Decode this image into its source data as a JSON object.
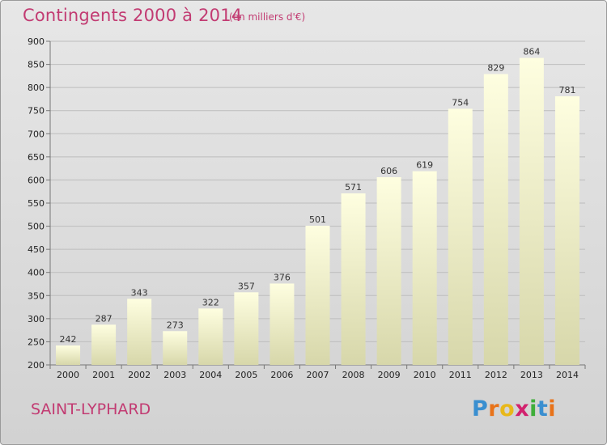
{
  "header": {
    "title": "Contingents 2000 à 2014",
    "subtitle": "(en milliers d'€)"
  },
  "footer": {
    "commune": "SAINT-LYPHARD",
    "logo_letters": [
      "P",
      "r",
      "o",
      "x",
      "i",
      "t",
      "i"
    ],
    "logo_colors": [
      "#3a8fd0",
      "#e8731a",
      "#e8b81a",
      "#d2226e",
      "#3fae3a",
      "#3a8fd0",
      "#e8731a"
    ]
  },
  "colors": {
    "title": "#c23b72",
    "bar_top": "#fefee0",
    "bar_bottom": "#d7d7aa",
    "grid": "#bdbdbd"
  },
  "chart_data": {
    "type": "bar",
    "title": "Contingents 2000 à 2014",
    "subtitle": "(en milliers d'€)",
    "categories": [
      "2000",
      "2001",
      "2002",
      "2003",
      "2004",
      "2005",
      "2006",
      "2007",
      "2008",
      "2009",
      "2010",
      "2011",
      "2012",
      "2013",
      "2014"
    ],
    "values": [
      242,
      287,
      343,
      273,
      322,
      357,
      376,
      501,
      571,
      606,
      619,
      754,
      829,
      864,
      781
    ],
    "ylim": [
      200,
      900
    ],
    "yticks": [
      200,
      250,
      300,
      350,
      400,
      450,
      500,
      550,
      600,
      650,
      700,
      750,
      800,
      850,
      900
    ],
    "grid": true,
    "xlabel": "",
    "ylabel": ""
  }
}
